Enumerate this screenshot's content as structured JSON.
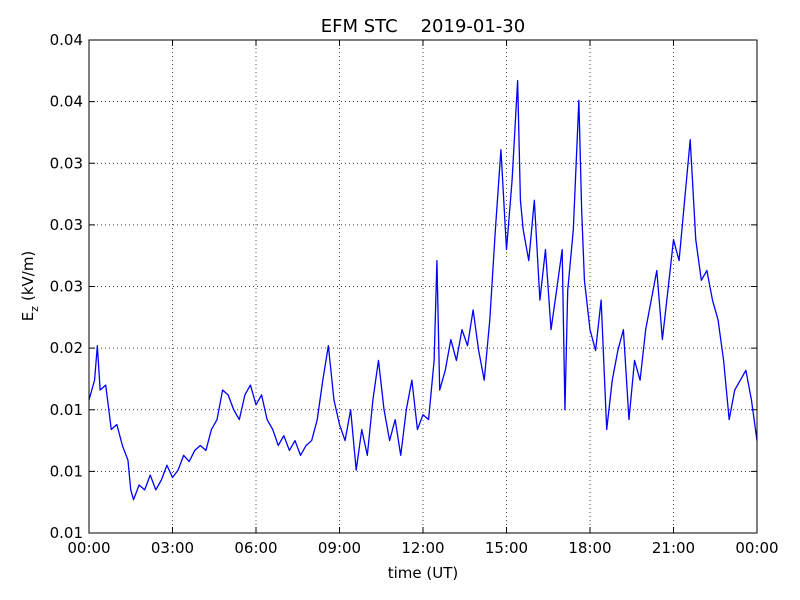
{
  "chart_data": {
    "type": "line",
    "title": "EFM STC    2019-01-30",
    "x_label": "time (UT)",
    "y_label": {
      "symbol": "E",
      "subscript": "z",
      "unit": "(kV/m)"
    },
    "xlim": [
      0,
      24
    ],
    "xticks": [
      {
        "value": 0,
        "label": "00:00"
      },
      {
        "value": 3,
        "label": "03:00"
      },
      {
        "value": 6,
        "label": "06:00"
      },
      {
        "value": 9,
        "label": "09:00"
      },
      {
        "value": 12,
        "label": "12:00"
      },
      {
        "value": 15,
        "label": "15:00"
      },
      {
        "value": 18,
        "label": "18:00"
      },
      {
        "value": 21,
        "label": "21:00"
      },
      {
        "value": 24,
        "label": "00:00"
      }
    ],
    "ylim": [
      0.005,
      0.045
    ],
    "yticks": [
      {
        "value": 0.005,
        "label": "0.01"
      },
      {
        "value": 0.01,
        "label": "0.01"
      },
      {
        "value": 0.015,
        "label": "0.01"
      },
      {
        "value": 0.02,
        "label": "0.02"
      },
      {
        "value": 0.025,
        "label": "0.03"
      },
      {
        "value": 0.03,
        "label": "0.03"
      },
      {
        "value": 0.035,
        "label": "0.03"
      },
      {
        "value": 0.04,
        "label": "0.04"
      },
      {
        "value": 0.045,
        "label": "0.04"
      }
    ],
    "grid": true,
    "color": "#0000ff",
    "x": [
      0,
      0.2,
      0.3,
      0.4,
      0.6,
      0.8,
      1.0,
      1.2,
      1.4,
      1.5,
      1.6,
      1.8,
      2.0,
      2.2,
      2.4,
      2.6,
      2.8,
      3.0,
      3.2,
      3.4,
      3.6,
      3.8,
      4.0,
      4.2,
      4.4,
      4.6,
      4.8,
      5.0,
      5.2,
      5.4,
      5.6,
      5.8,
      6.0,
      6.2,
      6.4,
      6.6,
      6.8,
      7.0,
      7.2,
      7.4,
      7.6,
      7.8,
      8.0,
      8.2,
      8.4,
      8.6,
      8.8,
      9.0,
      9.2,
      9.4,
      9.6,
      9.8,
      10.0,
      10.2,
      10.4,
      10.6,
      10.8,
      11.0,
      11.2,
      11.4,
      11.6,
      11.8,
      12.0,
      12.2,
      12.4,
      12.5,
      12.6,
      12.8,
      13.0,
      13.2,
      13.4,
      13.6,
      13.8,
      14.0,
      14.2,
      14.4,
      14.6,
      14.8,
      15.0,
      15.2,
      15.4,
      15.5,
      15.6,
      15.8,
      16.0,
      16.2,
      16.4,
      16.6,
      16.8,
      17.0,
      17.1,
      17.2,
      17.4,
      17.6,
      17.7,
      17.8,
      18.0,
      18.2,
      18.4,
      18.6,
      18.8,
      19.0,
      19.2,
      19.4,
      19.6,
      19.8,
      20.0,
      20.2,
      20.4,
      20.6,
      20.8,
      21.0,
      21.2,
      21.4,
      21.6,
      21.8,
      22.0,
      22.2,
      22.4,
      22.6,
      22.8,
      23.0,
      23.2,
      23.4,
      23.6,
      23.8,
      24.0
    ],
    "values": [
      0.0158,
      0.0174,
      0.0202,
      0.0166,
      0.017,
      0.0134,
      0.0138,
      0.0121,
      0.0109,
      0.0085,
      0.0077,
      0.0089,
      0.0085,
      0.0097,
      0.0085,
      0.0093,
      0.0105,
      0.0095,
      0.0101,
      0.0113,
      0.0108,
      0.0117,
      0.0121,
      0.0117,
      0.0134,
      0.0142,
      0.0166,
      0.0162,
      0.015,
      0.0142,
      0.0162,
      0.017,
      0.0154,
      0.0162,
      0.0142,
      0.0134,
      0.0121,
      0.0129,
      0.0117,
      0.0125,
      0.0113,
      0.0121,
      0.0125,
      0.0142,
      0.0174,
      0.0202,
      0.0158,
      0.0138,
      0.0125,
      0.015,
      0.0101,
      0.0134,
      0.0113,
      0.0158,
      0.019,
      0.015,
      0.0125,
      0.0142,
      0.0113,
      0.015,
      0.0174,
      0.0134,
      0.0146,
      0.0142,
      0.019,
      0.0271,
      0.0166,
      0.0182,
      0.0207,
      0.019,
      0.0215,
      0.0202,
      0.0231,
      0.0198,
      0.0174,
      0.0223,
      0.0296,
      0.0361,
      0.028,
      0.0336,
      0.0417,
      0.032,
      0.0296,
      0.0271,
      0.032,
      0.0239,
      0.028,
      0.0215,
      0.0247,
      0.028,
      0.015,
      0.0247,
      0.0296,
      0.0401,
      0.0312,
      0.0255,
      0.0215,
      0.0198,
      0.0239,
      0.0134,
      0.0174,
      0.0198,
      0.0215,
      0.0142,
      0.019,
      0.0174,
      0.0215,
      0.0239,
      0.0263,
      0.0207,
      0.0247,
      0.0288,
      0.0271,
      0.032,
      0.0369,
      0.0288,
      0.0255,
      0.0263,
      0.0239,
      0.0223,
      0.019,
      0.0142,
      0.0166,
      0.0174,
      0.0182,
      0.0158,
      0.0125
    ]
  }
}
